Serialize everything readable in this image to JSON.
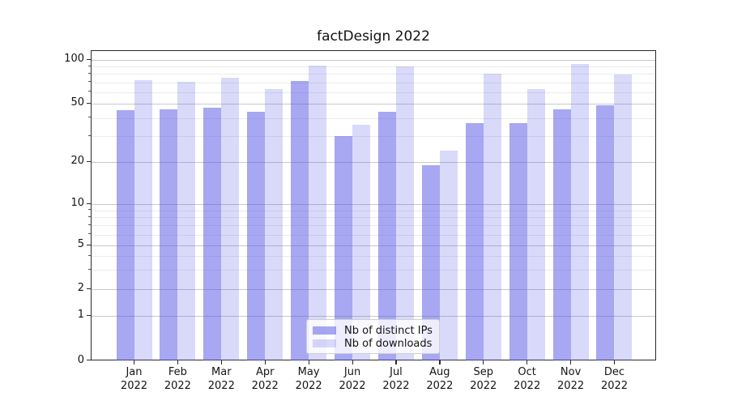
{
  "title": "factDesign 2022",
  "chart_data": {
    "type": "bar",
    "title": "factDesign 2022",
    "categories": [
      "Jan 2022",
      "Feb 2022",
      "Mar 2022",
      "Apr 2022",
      "May 2022",
      "Jun 2022",
      "Jul 2022",
      "Aug 2022",
      "Sep 2022",
      "Oct 2022",
      "Nov 2022",
      "Dec 2022"
    ],
    "series": [
      {
        "name": "Nb of distinct IPs",
        "fill": "rgba(80,80,230,0.5)",
        "values": [
          45,
          46,
          47,
          44,
          72,
          30,
          44,
          19,
          37,
          37,
          46,
          49
        ]
      },
      {
        "name": "Nb of downloads",
        "fill": "rgba(80,80,230,0.215)",
        "values": [
          73,
          71,
          75,
          63,
          91,
          36,
          90,
          24,
          80,
          63,
          94,
          79
        ]
      }
    ],
    "yscale": "symlog",
    "yticks": [
      0,
      1,
      2,
      5,
      10,
      20,
      50,
      100
    ],
    "minor_yticks": [
      3,
      4,
      6,
      7,
      8,
      9,
      30,
      40,
      60,
      70,
      80,
      90
    ],
    "ylim": [
      0,
      115
    ],
    "xlabel": "",
    "ylabel": "",
    "grid": "horizontal-major-and-minor",
    "legend_position": "lower center",
    "colors": {
      "bar_base": "#5050e6",
      "grid_major": "#c9c9c9",
      "grid_minor": "#ebebeb",
      "spine": "#2b2b2b"
    }
  }
}
